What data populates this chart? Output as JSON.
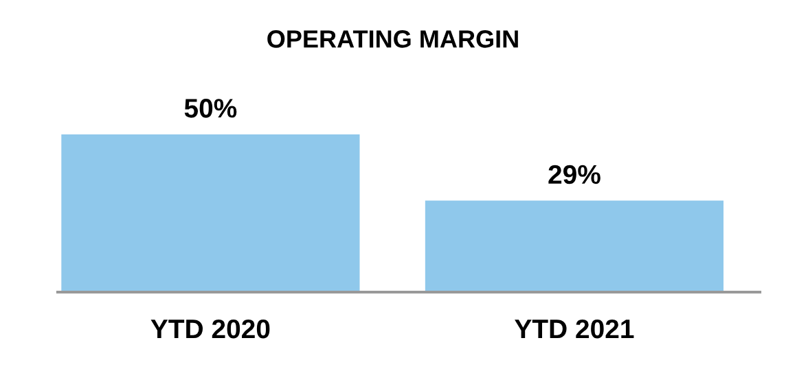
{
  "chart_data": {
    "type": "bar",
    "title": "OPERATING MARGIN",
    "categories": [
      "YTD 2020",
      "YTD 2021"
    ],
    "values": [
      50,
      29
    ],
    "value_labels": [
      "50%",
      "29%"
    ],
    "color": "#8fc8eb"
  }
}
